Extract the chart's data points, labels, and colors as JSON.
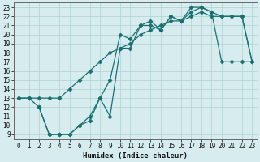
{
  "xlabel": "Humidex (Indice chaleur)",
  "xlim": [
    -0.5,
    23.5
  ],
  "ylim": [
    8.5,
    23.5
  ],
  "xticks": [
    0,
    1,
    2,
    3,
    4,
    5,
    6,
    7,
    8,
    9,
    10,
    11,
    12,
    13,
    14,
    15,
    16,
    17,
    18,
    19,
    20,
    21,
    22,
    23
  ],
  "yticks": [
    9,
    10,
    11,
    12,
    13,
    14,
    15,
    16,
    17,
    18,
    19,
    20,
    21,
    22,
    23
  ],
  "bg_color": "#d6ecee",
  "grid_color": "#b0d0d4",
  "line_color": "#1a7070",
  "curve1_x": [
    0,
    1,
    2,
    3,
    4,
    5,
    6,
    7,
    8,
    9,
    10,
    11,
    12,
    13,
    14,
    15,
    16,
    17,
    18,
    19,
    20,
    21,
    22,
    23
  ],
  "curve1_y": [
    13,
    13,
    13,
    13,
    13,
    14,
    15,
    16,
    17,
    18,
    18.5,
    19,
    20,
    20.5,
    21,
    21.5,
    21.5,
    22.5,
    23,
    22.5,
    22,
    22,
    22,
    17
  ],
  "curve2_x": [
    2,
    3,
    4,
    5,
    6,
    7,
    8,
    9,
    10,
    11,
    12,
    13,
    14,
    15,
    16,
    17,
    18,
    19,
    20,
    21,
    22,
    23
  ],
  "curve2_y": [
    12,
    9,
    9,
    9,
    10,
    11,
    13,
    15,
    20,
    19.5,
    21,
    21,
    20.5,
    22,
    21.5,
    23,
    23,
    22.5,
    17,
    17,
    17,
    17
  ],
  "curve3_x": [
    0,
    1,
    2,
    3,
    4,
    5,
    6,
    7,
    8,
    9,
    10,
    11,
    12,
    13,
    14,
    15,
    16,
    17,
    18,
    19,
    20,
    21,
    22,
    23
  ],
  "curve3_y": [
    13,
    13,
    12,
    9,
    9,
    9,
    10,
    10.5,
    13,
    11,
    18.5,
    18.5,
    21,
    21.5,
    20.5,
    22,
    21.5,
    22,
    22.5,
    22,
    22,
    22,
    22,
    17
  ],
  "marker": "D",
  "markersize": 2.5,
  "linewidth": 0.9
}
